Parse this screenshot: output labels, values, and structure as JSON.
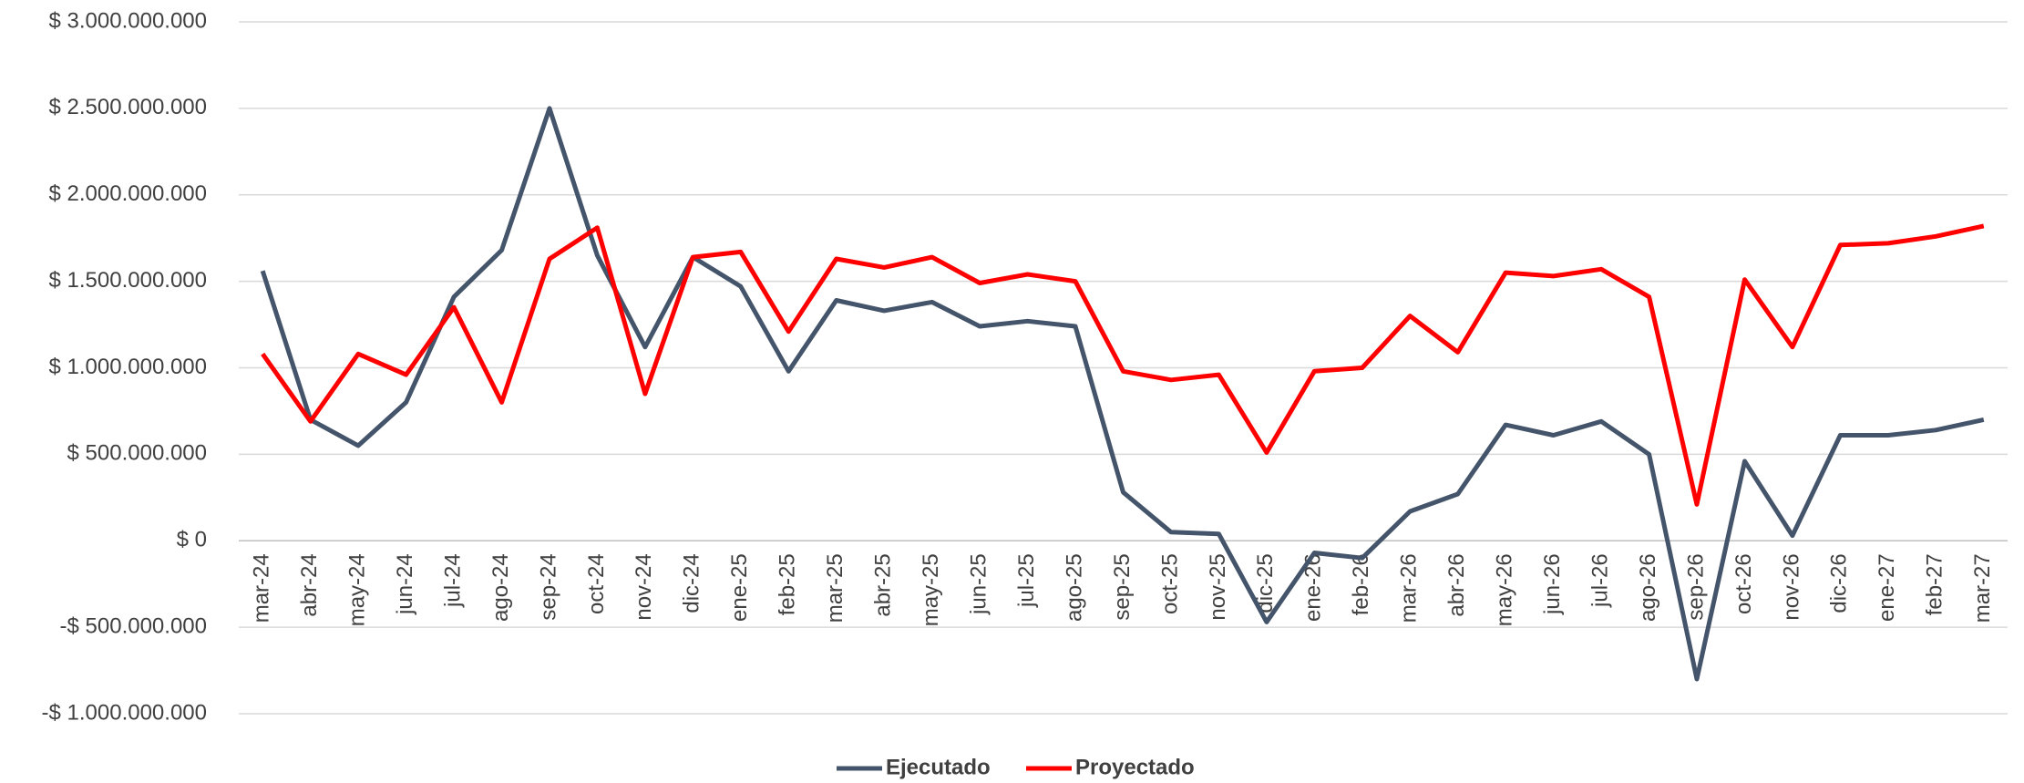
{
  "chart_data": {
    "type": "line",
    "categories": [
      "mar-24",
      "abr-24",
      "may-24",
      "jun-24",
      "jul-24",
      "ago-24",
      "sep-24",
      "oct-24",
      "nov-24",
      "dic-24",
      "ene-25",
      "feb-25",
      "mar-25",
      "abr-25",
      "may-25",
      "jun-25",
      "jul-25",
      "ago-25",
      "sep-25",
      "oct-25",
      "nov-25",
      "dic-25",
      "ene-26",
      "feb-26",
      "mar-26",
      "abr-26",
      "may-26",
      "jun-26",
      "jul-26",
      "ago-26",
      "sep-26",
      "oct-26",
      "nov-26",
      "dic-26",
      "ene-27",
      "feb-27",
      "mar-27"
    ],
    "series": [
      {
        "name": "Ejecutado",
        "color": "#44546a",
        "values": [
          1560000000,
          700000000,
          550000000,
          800000000,
          1410000000,
          1680000000,
          2500000000,
          1650000000,
          1120000000,
          1640000000,
          1470000000,
          980000000,
          1390000000,
          1330000000,
          1380000000,
          1240000000,
          1270000000,
          1240000000,
          280000000,
          50000000,
          40000000,
          -470000000,
          -70000000,
          -100000000,
          170000000,
          270000000,
          670000000,
          610000000,
          690000000,
          500000000,
          -800000000,
          460000000,
          30000000,
          610000000,
          610000000,
          640000000,
          700000000
        ]
      },
      {
        "name": "Proyectado",
        "color": "#ff0000",
        "values": [
          1080000000,
          690000000,
          1080000000,
          960000000,
          1350000000,
          800000000,
          1630000000,
          1810000000,
          850000000,
          1640000000,
          1670000000,
          1210000000,
          1630000000,
          1580000000,
          1640000000,
          1490000000,
          1540000000,
          1500000000,
          980000000,
          930000000,
          960000000,
          510000000,
          980000000,
          1000000000,
          1300000000,
          1090000000,
          1550000000,
          1530000000,
          1570000000,
          1410000000,
          210000000,
          1510000000,
          1120000000,
          1710000000,
          1720000000,
          1760000000,
          1820000000
        ]
      }
    ],
    "ylim": [
      -1000000000,
      3000000000
    ],
    "yticks": [
      {
        "value": -1000000000,
        "label": "-$ 1.000.000.000"
      },
      {
        "value": -500000000,
        "label": "-$ 500.000.000"
      },
      {
        "value": 0,
        "label": "$ 0"
      },
      {
        "value": 500000000,
        "label": "$ 500.000.000"
      },
      {
        "value": 1000000000,
        "label": "$ 1.000.000.000"
      },
      {
        "value": 1500000000,
        "label": "$ 1.500.000.000"
      },
      {
        "value": 2000000000,
        "label": "$ 2.000.000.000"
      },
      {
        "value": 2500000000,
        "label": "$ 2.500.000.000"
      },
      {
        "value": 3000000000,
        "label": "$ 3.000.000.000"
      }
    ],
    "grid": true,
    "legend": "bottom"
  }
}
